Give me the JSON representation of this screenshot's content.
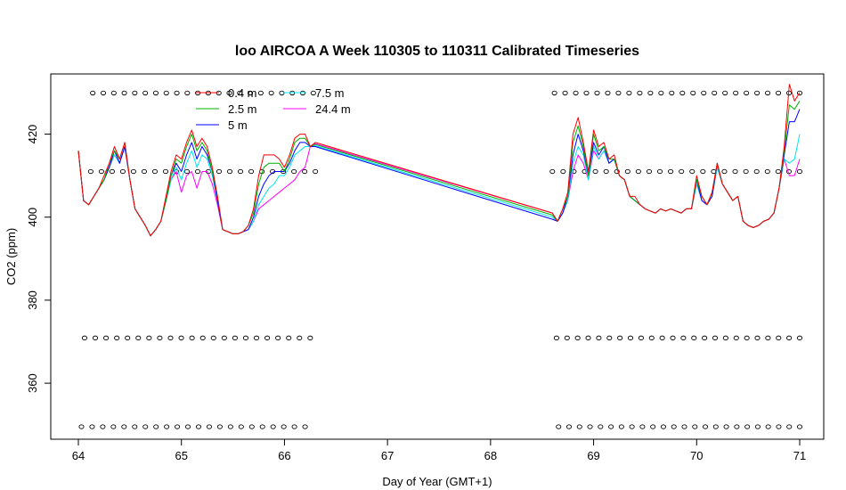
{
  "chart_data": {
    "type": "line",
    "title": "loo AIRCOA A  Week 110305 to 110311  Calibrated Timeseries",
    "xlabel": "Day of Year (GMT+1)",
    "ylabel": "CO2 (ppm)",
    "xlim": [
      63.7,
      71.3
    ],
    "ylim": [
      346.5,
      434.5
    ],
    "xticks": [
      64,
      65,
      66,
      67,
      68,
      69,
      70,
      71
    ],
    "yticks": [
      360,
      380,
      400,
      420
    ],
    "legend_position": "top-left",
    "colors": {
      "0.4 m": "#ff0000",
      "2.5 m": "#00b000",
      "5 m": "#0000ff",
      "7.5 m": "#00e5ee",
      "24.4 m": "#ff00ff"
    },
    "base_x": [
      64.0,
      64.05,
      64.1,
      64.15,
      64.2,
      64.25,
      64.3,
      64.35,
      64.4,
      64.45,
      64.5,
      64.55,
      64.6,
      64.65,
      64.7,
      64.75,
      64.8,
      64.85,
      64.9,
      64.95,
      65.0,
      65.05,
      65.1,
      65.15,
      65.2,
      65.25,
      65.3,
      65.35,
      65.4,
      65.45,
      65.5,
      65.55,
      65.6,
      65.65,
      65.7,
      65.75,
      65.8,
      65.85,
      65.9,
      65.95,
      66.0,
      66.05,
      66.1,
      66.15,
      66.2,
      66.25,
      66.3,
      68.6,
      68.65,
      68.7,
      68.75,
      68.8,
      68.85,
      68.9,
      68.95,
      69.0,
      69.05,
      69.1,
      69.15,
      69.2,
      69.25,
      69.3,
      69.35,
      69.4,
      69.45,
      69.5,
      69.55,
      69.6,
      69.65,
      69.7,
      69.75,
      69.8,
      69.85,
      69.9,
      69.95,
      70.0,
      70.05,
      70.1,
      70.15,
      70.2,
      70.25,
      70.3,
      70.35,
      70.4,
      70.45,
      70.5,
      70.55,
      70.6,
      70.65,
      70.7,
      70.75,
      70.8,
      70.85,
      70.9,
      70.95,
      71.0
    ],
    "base_y": [
      416.0,
      404.0,
      403.0,
      405.0,
      407.0,
      409.0,
      412.0,
      415.0,
      413.0,
      417.0,
      409.0,
      402.0,
      400.0,
      398.0,
      395.5,
      397.0,
      399.0,
      404.0,
      409.0,
      412.0,
      408.0,
      413.0,
      415.0,
      411.0,
      415.0,
      414.0,
      410.0,
      404.0,
      397.0,
      396.5,
      396.0,
      396.0,
      396.5,
      397.0,
      399.0,
      402.0,
      403.0,
      405.0,
      407.0,
      409.0,
      410.0,
      411.0,
      413.0,
      415.0,
      416.0,
      417.0,
      418.0,
      401.0,
      399.0,
      401.0,
      404.0,
      411.0,
      416.0,
      414.0,
      409.0,
      416.0,
      414.0,
      416.0,
      413.0,
      414.0,
      410.0,
      409.0,
      405.0,
      404.0,
      403.0,
      402.0,
      401.5,
      401.0,
      402.0,
      401.5,
      402.0,
      401.5,
      401.0,
      402.0,
      402.0,
      408.0,
      404.0,
      403.0,
      405.0,
      412.0,
      408.0,
      406.0,
      404.0,
      405.0,
      399.0,
      398.0,
      397.5,
      398.0,
      399.0,
      399.5,
      401.0,
      407.0,
      414.0,
      415.0,
      418.0,
      426.0
    ],
    "series": [
      {
        "name": "0.4 m",
        "bump": [
          0,
          0,
          0,
          0,
          0,
          1,
          1,
          2,
          1,
          1,
          0,
          0,
          0,
          0,
          0,
          0,
          0,
          1,
          2,
          3,
          6,
          5,
          6,
          6,
          4,
          3,
          2,
          1,
          0,
          0,
          0,
          0,
          0,
          1,
          3,
          8,
          12,
          10,
          8,
          5,
          2,
          4,
          6,
          5,
          4,
          0,
          0,
          0,
          0,
          1,
          2,
          9,
          8,
          4,
          2,
          5,
          3,
          2,
          1,
          1,
          0,
          0,
          0,
          1,
          0,
          0,
          0,
          0,
          0,
          0,
          0,
          0,
          0,
          0,
          0,
          2,
          1,
          0,
          1,
          1,
          0,
          0,
          0,
          0,
          0,
          0,
          0,
          0,
          0,
          0,
          0,
          0,
          3,
          17,
          10,
          4
        ]
      },
      {
        "name": "2.5 m",
        "bump": [
          0,
          0,
          0,
          0,
          0,
          0,
          1,
          1,
          1,
          1,
          0,
          0,
          0,
          0,
          0,
          0,
          0,
          0,
          1,
          2,
          5,
          4,
          5,
          5,
          3,
          2,
          1,
          1,
          0,
          0,
          0,
          0,
          0,
          1,
          2,
          6,
          9,
          8,
          6,
          4,
          1,
          3,
          5,
          4,
          3,
          0,
          -0.5,
          -0.5,
          0,
          1,
          1,
          7,
          6,
          3,
          1,
          4,
          2,
          1,
          1,
          0,
          0,
          0,
          0,
          0,
          0,
          0,
          0,
          0,
          0,
          0,
          0,
          0,
          0,
          0,
          0,
          1,
          1,
          0,
          1,
          1,
          0,
          0,
          0,
          0,
          0,
          0,
          0,
          0,
          0,
          0,
          0,
          0,
          2,
          12,
          8,
          2
        ]
      },
      {
        "name": "5 m",
        "bump": [
          0,
          0,
          0,
          0,
          0,
          0,
          0,
          1,
          0,
          0,
          0,
          0,
          0,
          0,
          0,
          0,
          0,
          0,
          1,
          1,
          3,
          2,
          3,
          3,
          2,
          1,
          1,
          0,
          0,
          0,
          0,
          0,
          0,
          0,
          1,
          3,
          5,
          5,
          4,
          2,
          1,
          2,
          3,
          3,
          2,
          0,
          -1,
          -1.5,
          0,
          0,
          1,
          4,
          4,
          2,
          1,
          2,
          1,
          1,
          0,
          0,
          0,
          0,
          0,
          0,
          0,
          0,
          0,
          0,
          0,
          0,
          0,
          0,
          0,
          0,
          0,
          1,
          0,
          0,
          0,
          1,
          0,
          0,
          0,
          0,
          0,
          0,
          0,
          0,
          0,
          0,
          0,
          0,
          1,
          8,
          5,
          0
        ]
      },
      {
        "name": "7.5 m",
        "bump": [
          0,
          0,
          0,
          0,
          0,
          0,
          0,
          0,
          0,
          0,
          0,
          0,
          0,
          0,
          0,
          0,
          0,
          0,
          0,
          0,
          1,
          0,
          1,
          1,
          0,
          0,
          0,
          0,
          0,
          0,
          0,
          0,
          0,
          0,
          0,
          1,
          2,
          2,
          1,
          1,
          0,
          1,
          2,
          1,
          1,
          0,
          -0.8,
          -1,
          0,
          0,
          0,
          2,
          1,
          1,
          0,
          1,
          0,
          0,
          0,
          0,
          0,
          0,
          0,
          0,
          0,
          0,
          0,
          0,
          0,
          0,
          0,
          0,
          0,
          0,
          0,
          0,
          0,
          0,
          0,
          0,
          0,
          0,
          0,
          0,
          0,
          0,
          0,
          0,
          0,
          0,
          0,
          0,
          0,
          -2,
          -4,
          -6
        ]
      },
      {
        "name": "24.4 m",
        "bump": [
          0,
          0,
          0,
          0,
          0,
          0,
          0,
          0,
          0,
          0,
          0,
          0,
          0,
          0,
          0,
          0,
          0,
          0,
          0,
          -1,
          -2,
          -3,
          -4,
          -4,
          -4,
          -3,
          -2,
          -1,
          0,
          0,
          0,
          0,
          0,
          0,
          0,
          0,
          0,
          -1,
          -2,
          -3,
          -3,
          -3,
          -4,
          -4,
          -4,
          0,
          -0.3,
          0,
          0,
          0,
          0,
          0,
          -1,
          -1,
          0,
          0,
          0,
          0,
          0,
          0,
          0,
          0,
          0,
          0,
          0,
          0,
          0,
          0,
          0,
          0,
          0,
          0,
          0,
          0,
          0,
          0,
          0,
          0,
          0,
          0,
          0,
          0,
          0,
          0,
          0,
          0,
          0,
          0,
          0,
          0,
          0,
          0,
          0,
          -5,
          -8,
          -12
        ]
      }
    ],
    "marker_rows": [
      {
        "y": 429.9,
        "x_from": 64.14,
        "x_to": 66.28,
        "count": 22
      },
      {
        "y": 429.9,
        "x_from": 68.62,
        "x_to": 71.0,
        "count": 24
      },
      {
        "y": 411.0,
        "x_from": 64.12,
        "x_to": 66.3,
        "count": 22
      },
      {
        "y": 411.0,
        "x_from": 68.6,
        "x_to": 71.0,
        "count": 24
      },
      {
        "y": 370.9,
        "x_from": 64.06,
        "x_to": 66.25,
        "count": 22
      },
      {
        "y": 370.9,
        "x_from": 68.64,
        "x_to": 71.0,
        "count": 24
      },
      {
        "y": 349.5,
        "x_from": 64.03,
        "x_to": 66.2,
        "count": 22
      },
      {
        "y": 349.5,
        "x_from": 68.66,
        "x_to": 71.0,
        "count": 24
      }
    ]
  }
}
